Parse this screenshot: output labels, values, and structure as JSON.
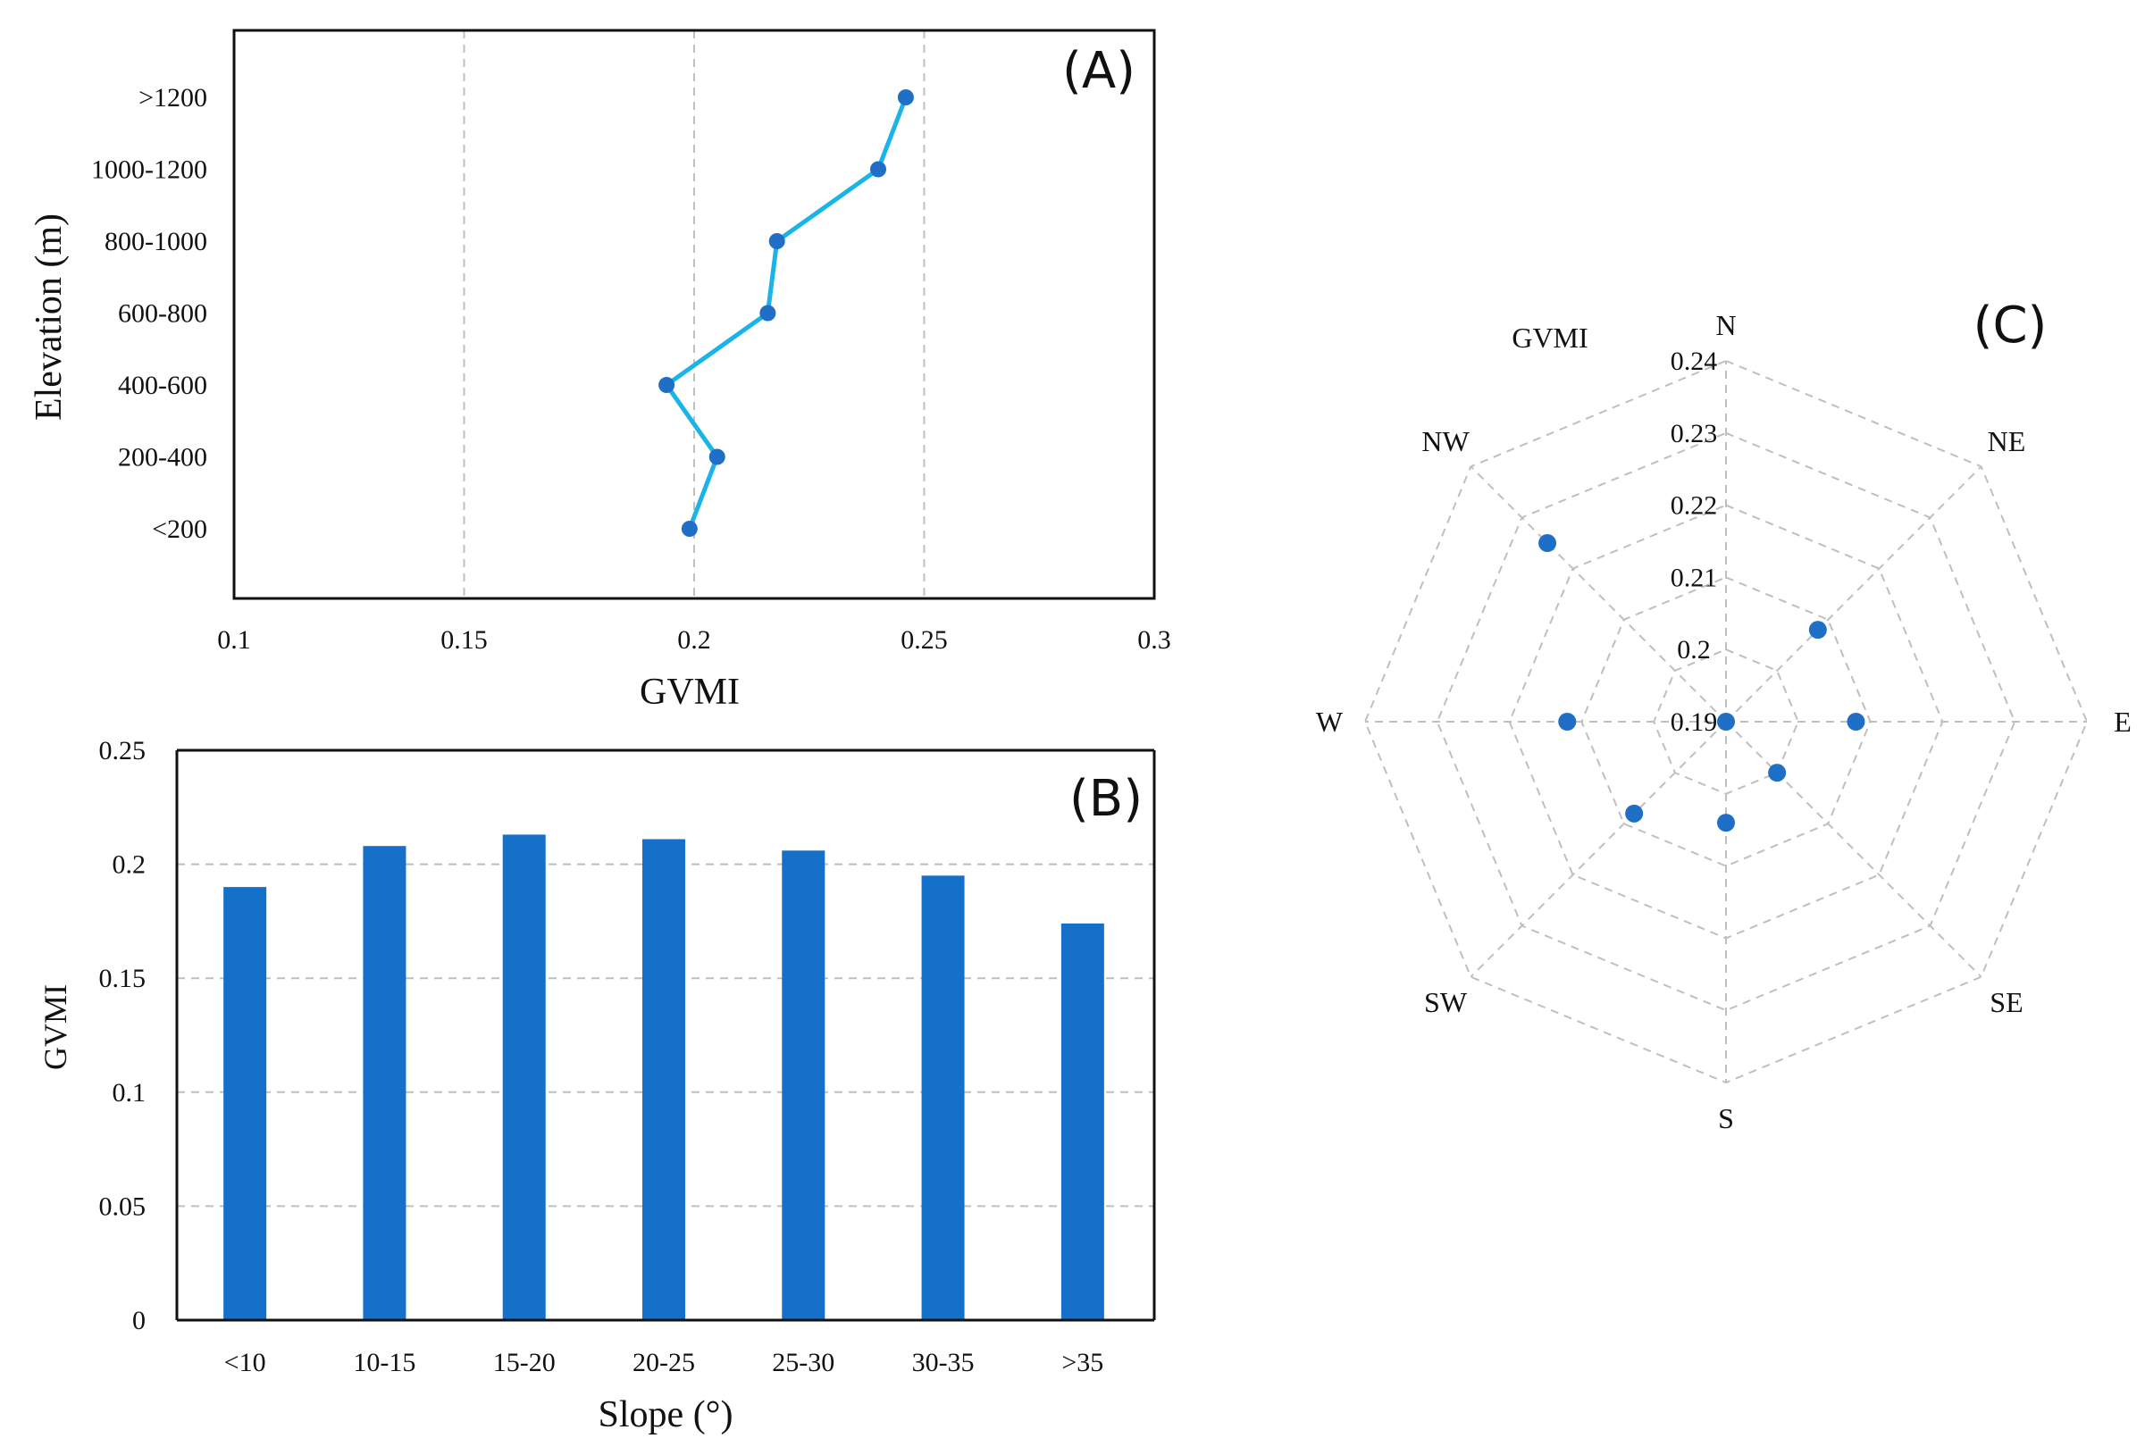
{
  "colors": {
    "bar": "#1570C9",
    "marker": "#1F6FC6",
    "line": "#1BB4E8",
    "grid": "#BFBFBF",
    "axis": "#111111"
  },
  "chart_data": [
    {
      "panel": "(A)",
      "type": "line",
      "orientation": "horizontal-values",
      "xlabel": "GVMI",
      "ylabel": "Elevation (m)",
      "xlim": [
        0.1,
        0.3
      ],
      "x_ticks": [
        "0.1",
        "0.15",
        "0.2",
        "0.25",
        "0.3"
      ],
      "x_tick_values": [
        0.1,
        0.15,
        0.2,
        0.25,
        0.3
      ],
      "categories": [
        "<200",
        "200-400",
        "400-600",
        "600-800",
        "800-1000",
        "1000-1200",
        ">1200"
      ],
      "values": [
        0.199,
        0.205,
        0.194,
        0.216,
        0.218,
        0.24,
        0.246
      ],
      "grid": "vertical dashed"
    },
    {
      "panel": "(B)",
      "type": "bar",
      "xlabel": "Slope (°)",
      "ylabel": "GVMI",
      "ylim": [
        0,
        0.25
      ],
      "y_ticks": [
        "0",
        "0.05",
        "0.1",
        "0.15",
        "0.2",
        "0.25"
      ],
      "y_tick_values": [
        0,
        0.05,
        0.1,
        0.15,
        0.2,
        0.25
      ],
      "categories": [
        "<10",
        "10-15",
        "15-20",
        "20-25",
        "25-30",
        "30-35",
        ">35"
      ],
      "values": [
        0.19,
        0.208,
        0.213,
        0.211,
        0.206,
        0.195,
        0.174
      ],
      "grid": "horizontal dashed"
    },
    {
      "panel": "(C)",
      "type": "radar",
      "series_name": "GVMI",
      "axes": [
        "N",
        "NE",
        "E",
        "SE",
        "S",
        "SW",
        "W",
        "NW"
      ],
      "values": [
        0.19,
        0.208,
        0.208,
        0.2,
        0.204,
        0.208,
        0.212,
        0.225
      ],
      "rlim": [
        0.19,
        0.24
      ],
      "r_ticks": [
        "0.19",
        "0.2",
        "0.21",
        "0.22",
        "0.23",
        "0.24"
      ],
      "r_tick_values": [
        0.19,
        0.2,
        0.21,
        0.22,
        0.23,
        0.24
      ]
    }
  ]
}
